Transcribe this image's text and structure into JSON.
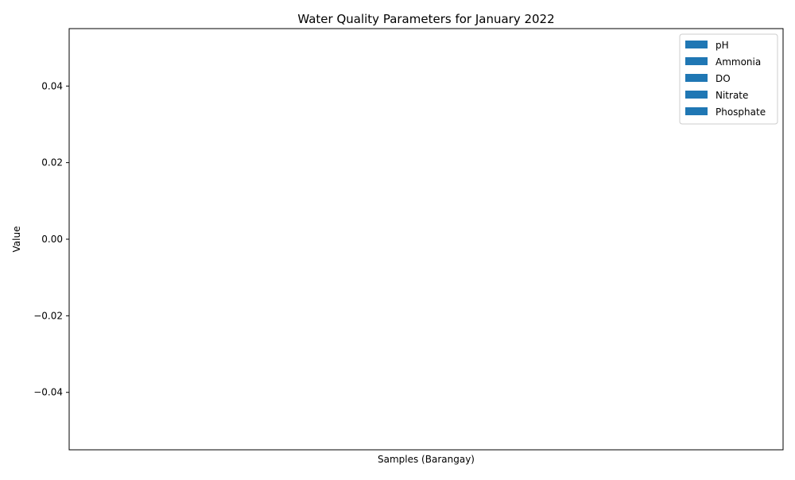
{
  "chart_data": {
    "type": "bar",
    "title": "Water Quality Parameters for January 2022",
    "xlabel": "Samples (Barangay)",
    "ylabel": "Value",
    "categories": [],
    "series": [
      {
        "name": "pH",
        "values": []
      },
      {
        "name": "Ammonia",
        "values": []
      },
      {
        "name": "DO",
        "values": []
      },
      {
        "name": "Nitrate",
        "values": []
      },
      {
        "name": "Phosphate",
        "values": []
      }
    ],
    "ylim": [
      -0.055,
      0.055
    ],
    "yticks": [
      {
        "value": 0.04,
        "label": "0.04"
      },
      {
        "value": 0.02,
        "label": "0.02"
      },
      {
        "value": 0.0,
        "label": "0.00"
      },
      {
        "value": -0.02,
        "label": "−0.02"
      },
      {
        "value": -0.04,
        "label": "−0.04"
      }
    ],
    "grid": false,
    "legend_position": "top-right",
    "series_color": "#1f77b4"
  }
}
